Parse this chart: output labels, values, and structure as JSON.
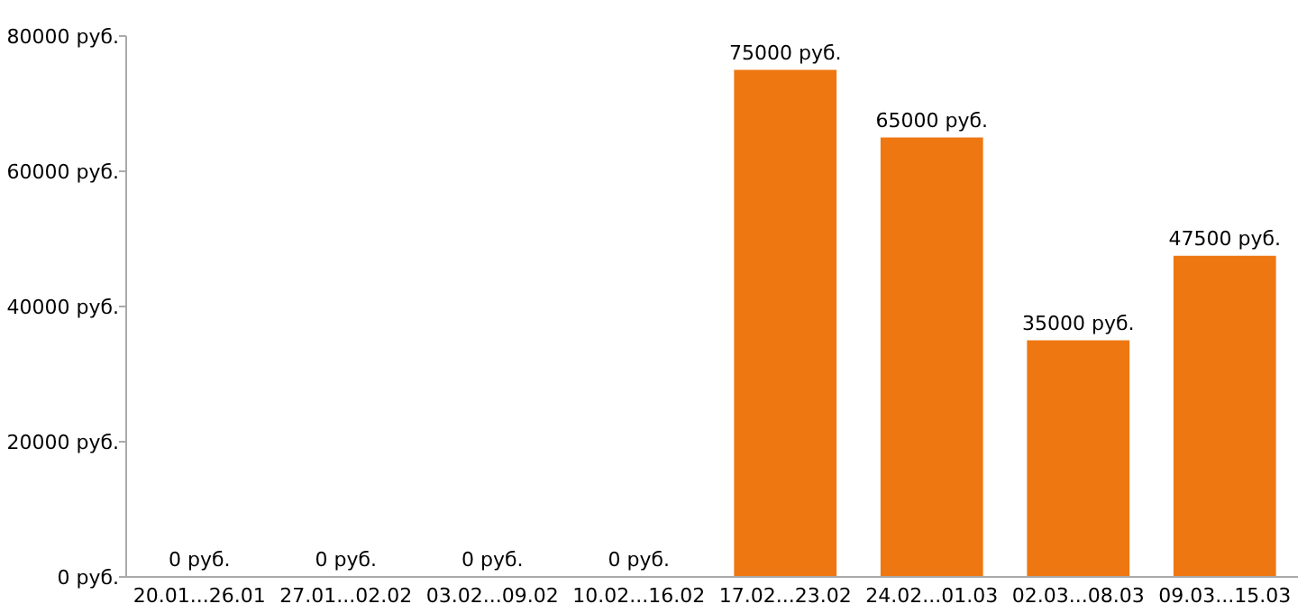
{
  "chart_data": {
    "type": "bar",
    "categories": [
      "20.01...26.01",
      "27.01...02.02",
      "03.02...09.02",
      "10.02...16.02",
      "17.02...23.02",
      "24.02...01.03",
      "02.03...08.03",
      "09.03...15.03"
    ],
    "values": [
      0,
      0,
      0,
      0,
      75000,
      65000,
      35000,
      47500
    ],
    "color": "#ee7711",
    "value_labels": [
      "0 руб.",
      "0 руб.",
      "0 руб.",
      "0 руб.",
      "75000 руб.",
      "65000 руб.",
      "35000 руб.",
      "47500 руб."
    ],
    "ylim": [
      0,
      80000
    ],
    "yticks": [
      {
        "value": 0,
        "label": "0 руб."
      },
      {
        "value": 20000,
        "label": "20000 руб."
      },
      {
        "value": 40000,
        "label": "40000 руб."
      },
      {
        "value": 60000,
        "label": "60000 руб."
      },
      {
        "value": 80000,
        "label": "80000 руб."
      }
    ]
  }
}
